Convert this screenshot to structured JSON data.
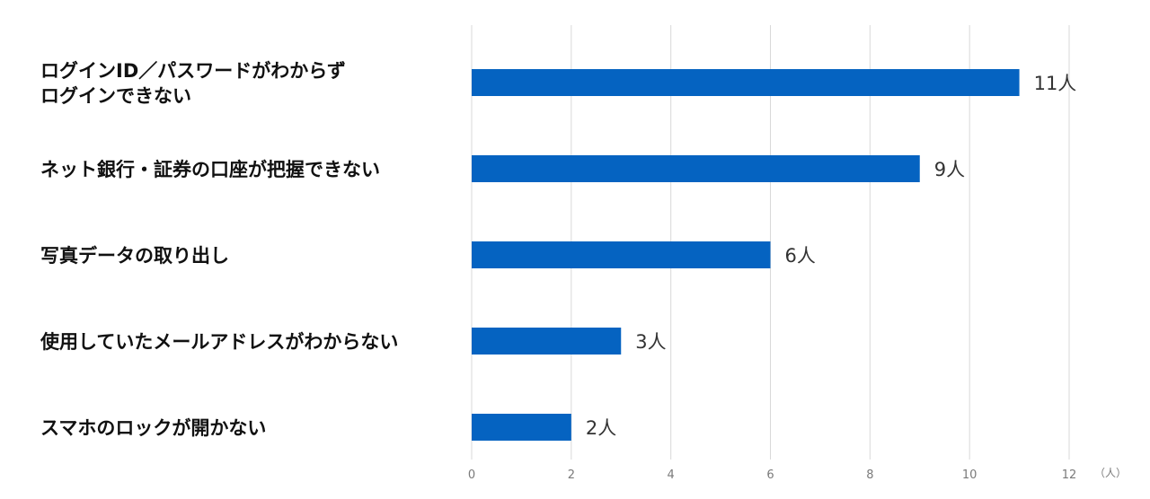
{
  "chart_data": {
    "type": "bar",
    "orientation": "horizontal",
    "categories": [
      [
        "ログインID／パスワードがわからず",
        "ログインできない"
      ],
      [
        "ネット銀行・証券の口座が把握できない"
      ],
      [
        "写真データの取り出し"
      ],
      [
        "使用していたメールアドレスがわからない"
      ],
      [
        "スマホのロックが開かない"
      ]
    ],
    "values": [
      11,
      9,
      6,
      3,
      2
    ],
    "data_labels": [
      "11人",
      "9人",
      "6人",
      "3人",
      "2人"
    ],
    "x_ticks": [
      "0",
      "2",
      "4",
      "6",
      "8",
      "10",
      "12"
    ],
    "xlim": [
      0,
      12
    ],
    "x_unit": "（人）",
    "bar_color": "#0563C1",
    "grid": true,
    "legend": "none"
  }
}
